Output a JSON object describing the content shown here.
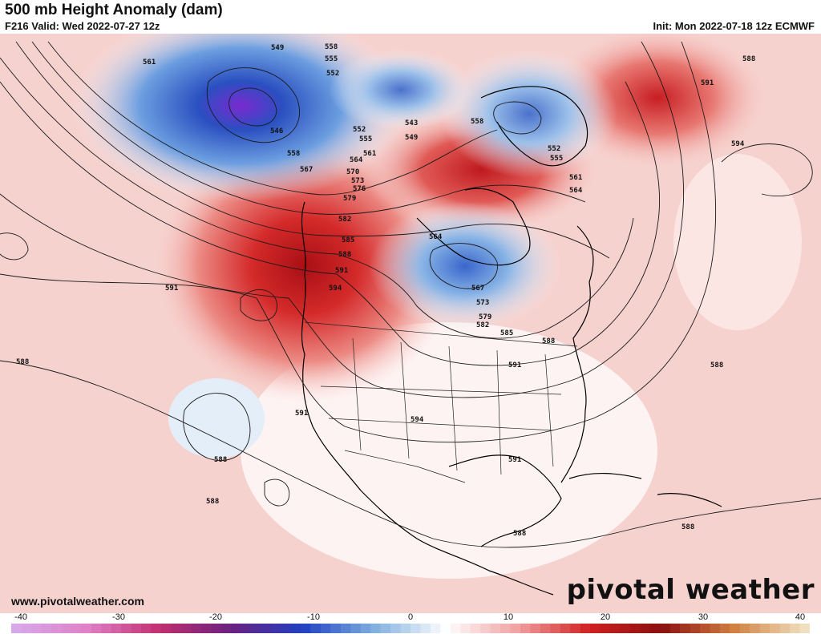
{
  "header": {
    "title": "500 mb Height Anomaly (dam)",
    "valid": "F216 Valid: Wed 2022-07-27 12z",
    "init": "Init: Mon 2022-07-18 12z ECMWF"
  },
  "footer": {
    "website": "www.pivotalweather.com",
    "logo": "pivotal weather"
  },
  "colorbar": {
    "ticks": [
      "-40",
      "-30",
      "-20",
      "-10",
      "0",
      "10",
      "20",
      "30",
      "40"
    ],
    "min": -40,
    "max": 40,
    "colors": [
      "#d8a8e8",
      "#e080c8",
      "#c03070",
      "#6a2080",
      "#2040c0",
      "#80b0e0",
      "#ffffff",
      "#f0a0a0",
      "#d02020",
      "#8a1010",
      "#d08040",
      "#f0e0c0"
    ]
  },
  "map": {
    "projection": "North America polar stereographic",
    "features": [
      "ridge-west-canada",
      "trough-alaska",
      "trough-hudson-bay",
      "trough-greenland"
    ],
    "contour_labels": [
      "549",
      "558",
      "555",
      "552",
      "561",
      "546",
      "558",
      "567",
      "552",
      "555",
      "561",
      "564",
      "570",
      "573",
      "576",
      "579",
      "582",
      "585",
      "588",
      "591",
      "594",
      "543",
      "549",
      "558",
      "552",
      "555",
      "561",
      "564",
      "564",
      "567",
      "573",
      "579",
      "582",
      "585",
      "588",
      "591",
      "594",
      "588",
      "591",
      "594",
      "591",
      "588",
      "591",
      "588",
      "588",
      "588",
      "591",
      "588",
      "588",
      "588",
      "591"
    ]
  }
}
